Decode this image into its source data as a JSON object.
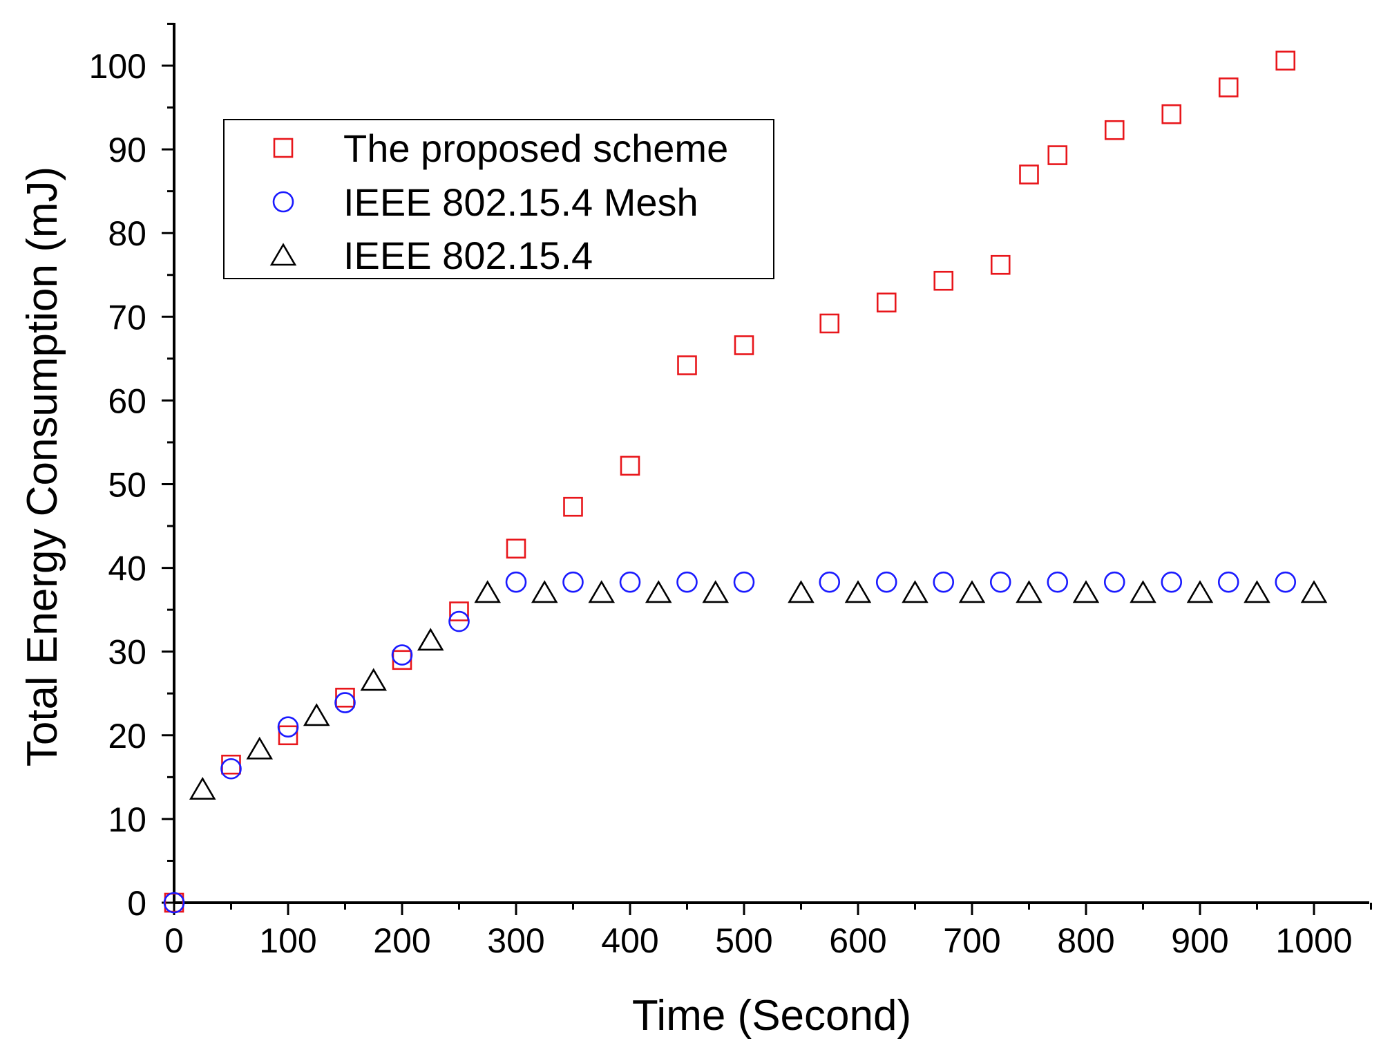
{
  "chart_data": {
    "type": "scatter",
    "title": "",
    "xlabel": "Time (Second)",
    "ylabel": "Total Energy Consumption (mJ)",
    "xlim": [
      0,
      1050
    ],
    "ylim": [
      0,
      105
    ],
    "xticks": [
      0,
      100,
      200,
      300,
      400,
      500,
      600,
      700,
      800,
      900,
      1000
    ],
    "yticks": [
      0,
      10,
      20,
      30,
      40,
      50,
      60,
      70,
      80,
      90,
      100
    ],
    "x_minor_step": 50,
    "y_minor_step": 5,
    "grid": false,
    "legend_position": "top-left",
    "series": [
      {
        "name": "The proposed scheme",
        "marker": "square",
        "color": "#e8161b",
        "x": [
          0,
          50,
          100,
          150,
          200,
          250,
          300,
          350,
          400,
          450,
          500,
          575,
          625,
          675,
          725,
          750,
          775,
          825,
          875,
          925,
          975
        ],
        "y": [
          0,
          16.5,
          20,
          24.5,
          29,
          34.8,
          42.3,
          47.3,
          52.2,
          64.2,
          66.6,
          69.2,
          71.7,
          74.3,
          76.2,
          87,
          89.3,
          92.3,
          94.2,
          97.4,
          100.6
        ]
      },
      {
        "name": "IEEE 802.15.4 Mesh",
        "marker": "circle",
        "color": "#1a1aff",
        "x": [
          0,
          50,
          100,
          150,
          200,
          250,
          300,
          350,
          400,
          450,
          500,
          575,
          625,
          675,
          725,
          775,
          825,
          875,
          925,
          975
        ],
        "y": [
          0,
          16,
          21,
          23.9,
          29.6,
          33.6,
          38.3,
          38.3,
          38.3,
          38.3,
          38.3,
          38.3,
          38.3,
          38.3,
          38.3,
          38.3,
          38.3,
          38.3,
          38.3,
          38.3
        ]
      },
      {
        "name": "IEEE 802.15.4",
        "marker": "triangle",
        "color": "#000000",
        "x": [
          25,
          75,
          125,
          175,
          225,
          275,
          325,
          375,
          425,
          475,
          550,
          600,
          650,
          700,
          750,
          800,
          850,
          900,
          950,
          1000
        ],
        "y": [
          13.5,
          18.3,
          22.3,
          26.5,
          31.3,
          37,
          37,
          37,
          37,
          37,
          37,
          37,
          37,
          37,
          37,
          37,
          37,
          37,
          37,
          37
        ]
      }
    ]
  }
}
